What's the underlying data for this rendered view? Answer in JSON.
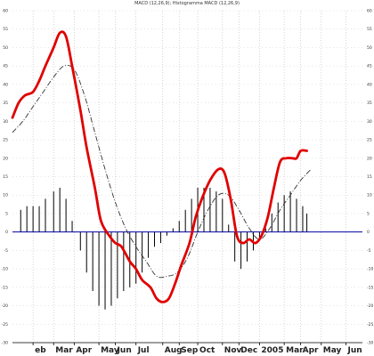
{
  "chart_data": {
    "type": "line",
    "title": "MACD (12,26,9); Histogramma MACD (12,26,9)",
    "xlabel": "",
    "ylabel": "",
    "ylim": [
      -30,
      60
    ],
    "yticks": [
      -30,
      -25,
      -20,
      -15,
      -10,
      -5,
      0,
      5,
      10,
      15,
      20,
      25,
      30,
      35,
      40,
      45,
      50,
      55,
      60
    ],
    "x_tick_labels": [
      "eb",
      "Mar",
      "Apr",
      "May",
      "Jun",
      "Jul",
      "Aug",
      "Sep",
      "Oct",
      "Nov",
      "Dec",
      "2005",
      "Mar",
      "Apr",
      "May",
      "Jun"
    ],
    "x_tick_positions": [
      1,
      2,
      3,
      4.2,
      5,
      6,
      7.3,
      8.1,
      9,
      10.2,
      11,
      12,
      13.2,
      14,
      15,
      16.2
    ],
    "grid": true,
    "legend": "none",
    "colors": {
      "macd": "#e00000",
      "signal": "#333333",
      "histogram": "#000000",
      "zero_line": "#0000a0",
      "grid": "#bbbbbb"
    },
    "series": [
      {
        "style": "red-thick-line",
        "x": [
          0,
          0.3,
          0.6,
          1.0,
          1.3,
          1.6,
          2.0,
          2.3,
          2.6,
          2.9,
          3.3,
          3.6,
          4.0,
          4.3,
          4.7,
          5.0,
          5.3,
          5.7,
          6.0,
          6.3,
          6.7,
          7.0,
          7.3,
          7.6,
          7.9,
          8.2,
          8.6,
          8.9,
          9.2,
          9.6,
          10.0,
          10.3,
          10.6,
          10.9,
          11.2,
          11.5,
          11.8,
          12.1,
          12.4,
          12.7,
          13.0,
          13.3,
          13.6,
          13.8,
          14.0,
          14.3
        ],
        "y": [
          31,
          35,
          37,
          38,
          41,
          45,
          50,
          54,
          53,
          45,
          33,
          23,
          12,
          3,
          -1,
          -3,
          -4,
          -8,
          -10,
          -13,
          -15,
          -18,
          -19,
          -18,
          -14,
          -9,
          -3,
          4,
          9,
          14,
          17,
          16,
          9,
          -1,
          -3,
          -2,
          -3,
          -1,
          4,
          12,
          19,
          20,
          20,
          20,
          22,
          22
        ]
      },
      {
        "style": "black-dashed-line",
        "x": [
          0,
          0.5,
          1.0,
          1.5,
          2.0,
          2.5,
          3.0,
          3.5,
          4.0,
          4.5,
          5.0,
          5.5,
          6.0,
          6.5,
          7.0,
          7.5,
          8.0,
          8.5,
          9.0,
          9.5,
          10.0,
          10.5,
          11.0,
          11.5,
          12.0,
          12.5,
          13.0,
          13.5,
          14.0,
          14.5
        ],
        "y": [
          27,
          30,
          34,
          38,
          42,
          45,
          44,
          37,
          27,
          17,
          8,
          1,
          -4,
          -8,
          -12,
          -12,
          -11,
          -7,
          0,
          6,
          10,
          10,
          6,
          1,
          -2,
          1,
          6,
          10,
          14,
          17
        ]
      },
      {
        "style": "histogram",
        "x": [
          0.4,
          0.7,
          1.0,
          1.3,
          1.6,
          2.0,
          2.3,
          2.6,
          2.9,
          3.3,
          3.6,
          3.9,
          4.2,
          4.5,
          4.8,
          5.1,
          5.4,
          5.7,
          6.0,
          6.3,
          6.6,
          6.9,
          7.2,
          7.5,
          7.8,
          8.1,
          8.4,
          8.7,
          9.0,
          9.3,
          9.6,
          9.9,
          10.2,
          10.5,
          10.8,
          11.1,
          11.4,
          11.7,
          12.0,
          12.3,
          12.6,
          12.9,
          13.2,
          13.5,
          13.8,
          14.1,
          14.3
        ],
        "y": [
          6,
          7,
          7,
          7,
          9,
          11,
          12,
          9,
          3,
          -5,
          -11,
          -16,
          -20,
          -21,
          -20,
          -18,
          -16,
          -15,
          -14,
          -11,
          -7,
          -4,
          -3,
          -1,
          1,
          3,
          6,
          9,
          12,
          12,
          12,
          11,
          9,
          2,
          -8,
          -10,
          -8,
          -5,
          -2,
          1,
          5,
          8,
          10,
          11,
          9,
          7,
          5
        ]
      }
    ]
  }
}
